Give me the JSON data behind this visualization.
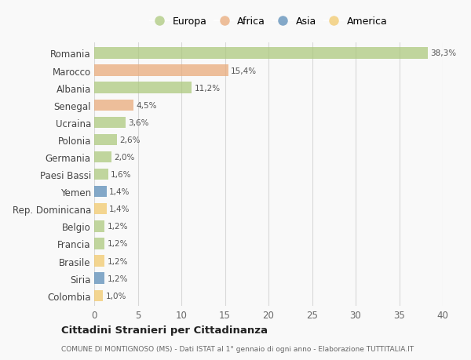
{
  "countries": [
    "Romania",
    "Marocco",
    "Albania",
    "Senegal",
    "Ucraina",
    "Polonia",
    "Germania",
    "Paesi Bassi",
    "Yemen",
    "Rep. Dominicana",
    "Belgio",
    "Francia",
    "Brasile",
    "Siria",
    "Colombia"
  ],
  "values": [
    38.3,
    15.4,
    11.2,
    4.5,
    3.6,
    2.6,
    2.0,
    1.6,
    1.4,
    1.4,
    1.2,
    1.2,
    1.2,
    1.2,
    1.0
  ],
  "labels": [
    "38,3%",
    "15,4%",
    "11,2%",
    "4,5%",
    "3,6%",
    "2,6%",
    "2,0%",
    "1,6%",
    "1,4%",
    "1,4%",
    "1,2%",
    "1,2%",
    "1,2%",
    "1,2%",
    "1,0%"
  ],
  "continents": [
    "Europa",
    "Africa",
    "Europa",
    "Africa",
    "Europa",
    "Europa",
    "Europa",
    "Europa",
    "Asia",
    "America",
    "Europa",
    "Europa",
    "America",
    "Asia",
    "America"
  ],
  "continent_colors": {
    "Europa": "#adc97e",
    "Africa": "#e9ab7b",
    "Asia": "#5b8db8",
    "America": "#f2c96d"
  },
  "xlim": [
    0,
    40
  ],
  "xticks": [
    0,
    5,
    10,
    15,
    20,
    25,
    30,
    35,
    40
  ],
  "title": "Cittadini Stranieri per Cittadinanza",
  "subtitle": "COMUNE DI MONTIGNOSO (MS) - Dati ISTAT al 1° gennaio di ogni anno - Elaborazione TUTTITALIA.IT",
  "bg_color": "#f9f9f9",
  "grid_color": "#d8d8d8",
  "bar_height": 0.65,
  "legend_entries": [
    "Europa",
    "Africa",
    "Asia",
    "America"
  ],
  "alpha": 0.75
}
